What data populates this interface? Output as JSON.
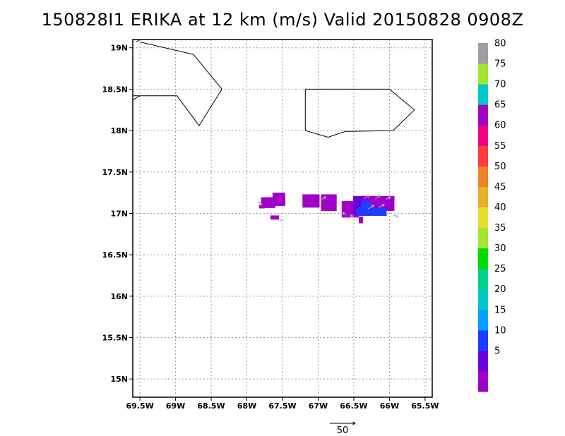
{
  "title": "150828I1 ERIKA at 12 km (m/s) Valid 20150828 0908Z",
  "map": {
    "lon_range": [
      -69.6,
      -65.4
    ],
    "lat_range": [
      14.78,
      19.1
    ],
    "x_ticks": [
      {
        "lon": -69.5,
        "label": "69.5W"
      },
      {
        "lon": -69.0,
        "label": "69W"
      },
      {
        "lon": -68.5,
        "label": "68.5W"
      },
      {
        "lon": -68.0,
        "label": "68W"
      },
      {
        "lon": -67.5,
        "label": "67.5W"
      },
      {
        "lon": -67.0,
        "label": "67W"
      },
      {
        "lon": -66.5,
        "label": "66.5W"
      },
      {
        "lon": -66.0,
        "label": "66W"
      },
      {
        "lon": -65.5,
        "label": "65.5W"
      }
    ],
    "y_ticks": [
      {
        "lat": 19.0,
        "label": "19N"
      },
      {
        "lat": 18.5,
        "label": "18.5N"
      },
      {
        "lat": 18.0,
        "label": "18N"
      },
      {
        "lat": 17.5,
        "label": "17.5N"
      },
      {
        "lat": 17.0,
        "label": "17N"
      },
      {
        "lat": 16.5,
        "label": "16.5N"
      },
      {
        "lat": 16.0,
        "label": "16N"
      },
      {
        "lat": 15.5,
        "label": "15.5N"
      },
      {
        "lat": 15.0,
        "label": "15N"
      }
    ],
    "coastlines": [
      [
        [
          -69.55,
          19.07
        ],
        [
          -69.5,
          19.1
        ]
      ],
      [
        [
          -69.5,
          19.07
        ],
        [
          -68.75,
          18.92
        ],
        [
          -68.35,
          18.5
        ],
        [
          -68.67,
          18.06
        ],
        [
          -68.98,
          18.42
        ],
        [
          -69.6,
          18.42
        ]
      ],
      [
        [
          -69.6,
          18.37
        ],
        [
          -69.5,
          18.42
        ]
      ],
      [
        [
          -67.18,
          18.5
        ],
        [
          -66.0,
          18.5
        ],
        [
          -65.65,
          18.25
        ],
        [
          -65.95,
          18.0
        ],
        [
          -66.62,
          17.99
        ],
        [
          -66.86,
          17.92
        ],
        [
          -67.18,
          18.0
        ],
        [
          -67.18,
          18.5
        ]
      ]
    ],
    "colorbar": {
      "levels": [
        {
          "label": "",
          "color": "#a000c8"
        },
        {
          "label": "5",
          "color": "#6e00dc"
        },
        {
          "label": "10",
          "color": "#1e3cff"
        },
        {
          "label": "15",
          "color": "#00a0ff"
        },
        {
          "label": "20",
          "color": "#00c8c8"
        },
        {
          "label": "25",
          "color": "#00d28c"
        },
        {
          "label": "30",
          "color": "#00dc00"
        },
        {
          "label": "35",
          "color": "#a0e632"
        },
        {
          "label": "40",
          "color": "#e6dc32"
        },
        {
          "label": "45",
          "color": "#e6af2d"
        },
        {
          "label": "50",
          "color": "#f08228"
        },
        {
          "label": "55",
          "color": "#fa3c3c"
        },
        {
          "label": "60",
          "color": "#f00082"
        },
        {
          "label": "65",
          "color": "#a000c8"
        },
        {
          "label": "70",
          "color": "#00c8c8"
        },
        {
          "label": "75",
          "color": "#a0e632"
        },
        {
          "label": "80",
          "color": "#a0a0a0"
        }
      ]
    },
    "wind_cells": [
      {
        "lon": -67.79,
        "lat": 17.08,
        "level": 0,
        "w": 0.08,
        "h": 0.04
      },
      {
        "lon": -67.7,
        "lat": 17.13,
        "level": 0,
        "w": 0.2,
        "h": 0.13
      },
      {
        "lon": -67.55,
        "lat": 17.17,
        "level": 0,
        "w": 0.18,
        "h": 0.16
      },
      {
        "lon": -67.61,
        "lat": 16.95,
        "level": 0,
        "w": 0.12,
        "h": 0.05
      },
      {
        "lon": -67.1,
        "lat": 17.15,
        "level": 0,
        "w": 0.24,
        "h": 0.16
      },
      {
        "lon": -66.85,
        "lat": 17.13,
        "level": 0,
        "w": 0.22,
        "h": 0.2
      },
      {
        "lon": -66.55,
        "lat": 17.05,
        "level": 0,
        "w": 0.24,
        "h": 0.2
      },
      {
        "lon": -66.4,
        "lat": 17.1,
        "level": 1,
        "w": 0.22,
        "h": 0.22
      },
      {
        "lon": -66.15,
        "lat": 17.12,
        "level": 0,
        "w": 0.44,
        "h": 0.18
      },
      {
        "lon": -66.25,
        "lat": 17.02,
        "level": 2,
        "w": 0.42,
        "h": 0.1
      },
      {
        "lon": -66.33,
        "lat": 17.1,
        "level": 2,
        "w": 0.14,
        "h": 0.1
      },
      {
        "lon": -66.4,
        "lat": 16.92,
        "level": 0,
        "w": 0.06,
        "h": 0.08
      }
    ],
    "wind_vectors": [
      {
        "lon": -67.78,
        "lat": 17.1,
        "u": -0.06,
        "v": 0.04
      },
      {
        "lon": -67.55,
        "lat": 16.93,
        "u": 0.06,
        "v": -0.02
      },
      {
        "lon": -66.95,
        "lat": 17.17,
        "u": 0.06,
        "v": 0.03
      },
      {
        "lon": -66.6,
        "lat": 16.98,
        "u": -0.06,
        "v": 0.03
      },
      {
        "lon": -66.35,
        "lat": 17.18,
        "u": 0.07,
        "v": 0.04
      },
      {
        "lon": -66.2,
        "lat": 17.18,
        "u": 0.07,
        "v": 0.04
      },
      {
        "lon": -66.05,
        "lat": 17.17,
        "u": 0.07,
        "v": 0.03
      },
      {
        "lon": -66.3,
        "lat": 17.05,
        "u": 0.08,
        "v": 0.05
      },
      {
        "lon": -66.15,
        "lat": 17.07,
        "u": 0.08,
        "v": 0.04
      },
      {
        "lon": -65.95,
        "lat": 16.98,
        "u": 0.07,
        "v": -0.02
      },
      {
        "lon": -66.5,
        "lat": 16.95,
        "u": -0.05,
        "v": 0.03
      }
    ],
    "reference_vector": {
      "label": "50"
    }
  }
}
